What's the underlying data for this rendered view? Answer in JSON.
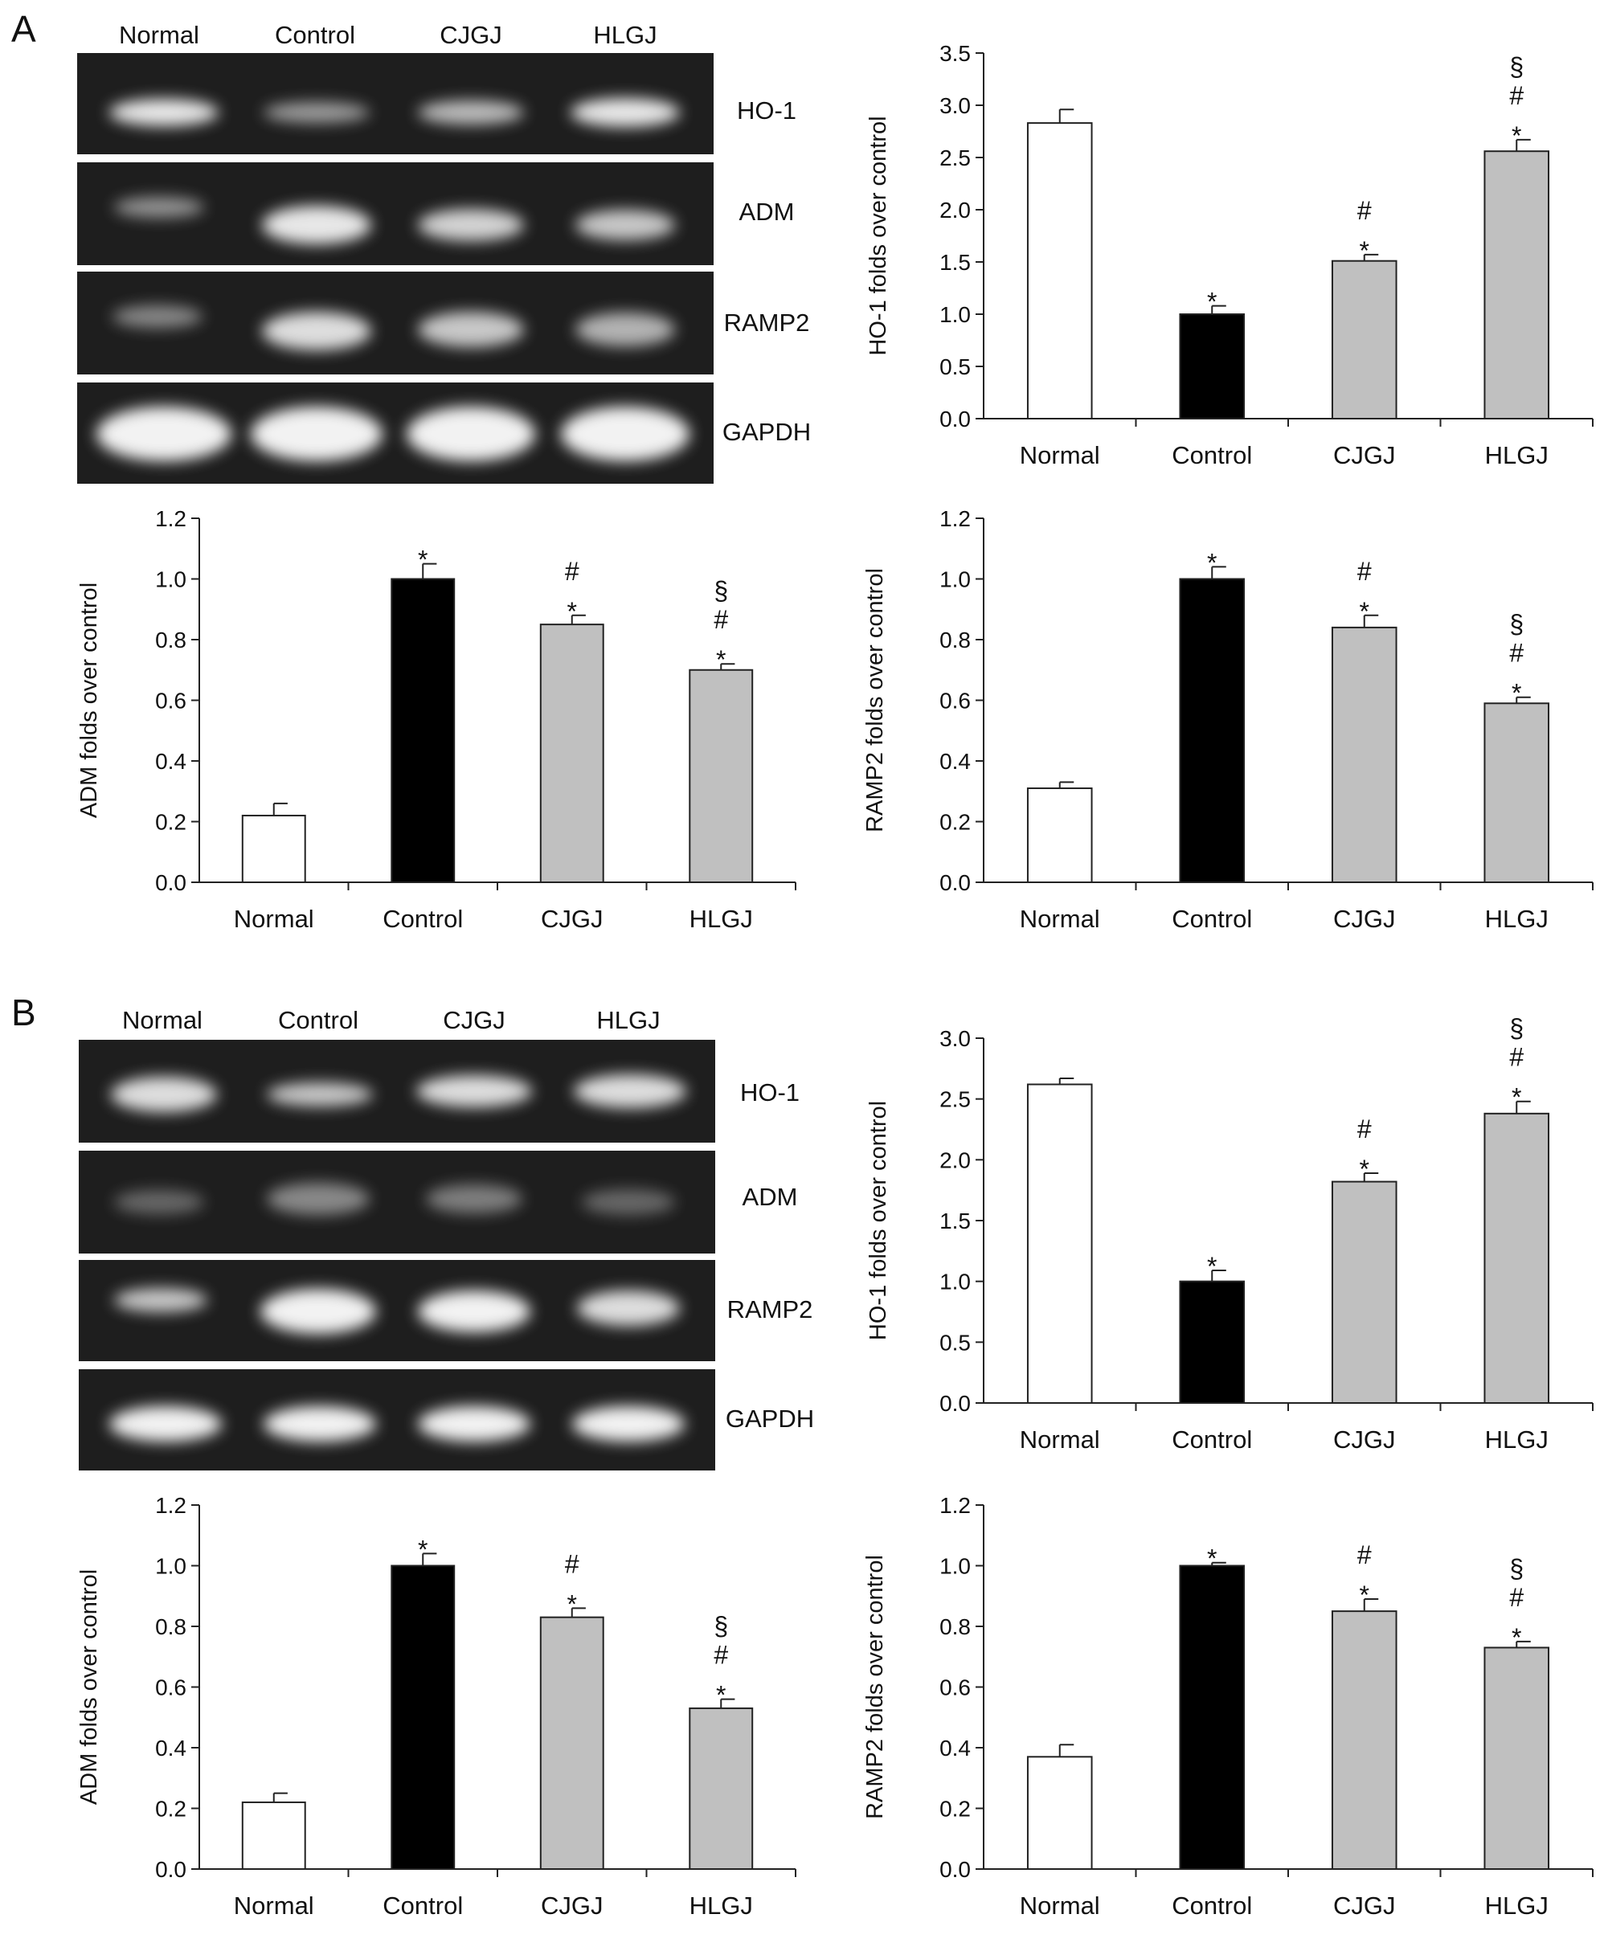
{
  "panels": [
    {
      "letter": "A",
      "gel": {
        "lanes": [
          "Normal",
          "Control",
          "CJGJ",
          "HLGJ"
        ],
        "genes": [
          "HO-1",
          "ADM",
          "RAMP2",
          "GAPDH"
        ]
      },
      "charts": [
        {
          "type": "bar",
          "ylabel": "HO-1 folds over control",
          "ylim": [
            0,
            3.5
          ],
          "yticks": [
            "0.0",
            "0.5",
            "1.0",
            "1.5",
            "2.0",
            "2.5",
            "3.0",
            "3.5"
          ],
          "categories": [
            "Normal",
            "Control",
            "CJGJ",
            "HLGJ"
          ],
          "values": [
            2.83,
            1.0,
            1.51,
            2.56
          ],
          "errors": [
            0.13,
            0.08,
            0.06,
            0.11
          ],
          "significance": [
            [],
            [
              "*"
            ],
            [
              "*",
              "#"
            ],
            [
              "*",
              "#",
              "§"
            ]
          ]
        },
        {
          "type": "bar",
          "ylabel": "ADM folds over control",
          "ylim": [
            0,
            1.2
          ],
          "yticks": [
            "0.0",
            "0.2",
            "0.4",
            "0.6",
            "0.8",
            "1.0",
            "1.2"
          ],
          "categories": [
            "Normal",
            "Control",
            "CJGJ",
            "HLGJ"
          ],
          "values": [
            0.22,
            1.0,
            0.85,
            0.7
          ],
          "errors": [
            0.04,
            0.05,
            0.03,
            0.02
          ],
          "significance": [
            [],
            [
              "*"
            ],
            [
              "*",
              "#"
            ],
            [
              "*",
              "#",
              "§"
            ]
          ]
        },
        {
          "type": "bar",
          "ylabel": "RAMP2 folds over control",
          "ylim": [
            0,
            1.2
          ],
          "yticks": [
            "0.0",
            "0.2",
            "0.4",
            "0.6",
            "0.8",
            "1.0",
            "1.2"
          ],
          "categories": [
            "Normal",
            "Control",
            "CJGJ",
            "HLGJ"
          ],
          "values": [
            0.31,
            1.0,
            0.84,
            0.59
          ],
          "errors": [
            0.02,
            0.04,
            0.04,
            0.02
          ],
          "significance": [
            [],
            [
              "*"
            ],
            [
              "*",
              "#"
            ],
            [
              "*",
              "#",
              "§"
            ]
          ]
        }
      ]
    },
    {
      "letter": "B",
      "gel": {
        "lanes": [
          "Normal",
          "Control",
          "CJGJ",
          "HLGJ"
        ],
        "genes": [
          "HO-1",
          "ADM",
          "RAMP2",
          "GAPDH"
        ]
      },
      "charts": [
        {
          "type": "bar",
          "ylabel": "HO-1 folds over control",
          "ylim": [
            0,
            3.0
          ],
          "yticks": [
            "0.0",
            "0.5",
            "1.0",
            "1.5",
            "2.0",
            "2.5",
            "3.0"
          ],
          "categories": [
            "Normal",
            "Control",
            "CJGJ",
            "HLGJ"
          ],
          "values": [
            2.62,
            1.0,
            1.82,
            2.38
          ],
          "errors": [
            0.05,
            0.09,
            0.07,
            0.1
          ],
          "significance": [
            [],
            [
              "*"
            ],
            [
              "*",
              "#"
            ],
            [
              "*",
              "#",
              "§"
            ]
          ]
        },
        {
          "type": "bar",
          "ylabel": "ADM folds over control",
          "ylim": [
            0,
            1.2
          ],
          "yticks": [
            "0.0",
            "0.2",
            "0.4",
            "0.6",
            "0.8",
            "1.0",
            "1.2"
          ],
          "categories": [
            "Normal",
            "Control",
            "CJGJ",
            "HLGJ"
          ],
          "values": [
            0.22,
            1.0,
            0.83,
            0.53
          ],
          "errors": [
            0.03,
            0.04,
            0.03,
            0.03
          ],
          "significance": [
            [],
            [
              "*"
            ],
            [
              "*",
              "#"
            ],
            [
              "*",
              "#",
              "§"
            ]
          ]
        },
        {
          "type": "bar",
          "ylabel": "RAMP2 folds over control",
          "ylim": [
            0,
            1.2
          ],
          "yticks": [
            "0.0",
            "0.2",
            "0.4",
            "0.6",
            "0.8",
            "1.0",
            "1.2"
          ],
          "categories": [
            "Normal",
            "Control",
            "CJGJ",
            "HLGJ"
          ],
          "values": [
            0.37,
            1.0,
            0.85,
            0.73
          ],
          "errors": [
            0.04,
            0.01,
            0.04,
            0.02
          ],
          "significance": [
            [],
            [
              "*"
            ],
            [
              "*",
              "#"
            ],
            [
              "*",
              "#",
              "§"
            ]
          ]
        }
      ]
    }
  ],
  "colors": {
    "normal_bar": "#ffffff",
    "control_bar": "#000000",
    "treatment_bar": "#c0c0c0",
    "gel_background": "#1e1e1e",
    "band": "#f2f2f2"
  },
  "chart_data": [
    {
      "type": "bar",
      "panel": "A",
      "ylabel": "HO-1 folds over control",
      "ylim": [
        0,
        3.5
      ],
      "categories": [
        "Normal",
        "Control",
        "CJGJ",
        "HLGJ"
      ],
      "values": [
        2.83,
        1.0,
        1.51,
        2.56
      ],
      "errors": [
        0.13,
        0.08,
        0.06,
        0.11
      ]
    },
    {
      "type": "bar",
      "panel": "A",
      "ylabel": "ADM folds over control",
      "ylim": [
        0,
        1.2
      ],
      "categories": [
        "Normal",
        "Control",
        "CJGJ",
        "HLGJ"
      ],
      "values": [
        0.22,
        1.0,
        0.85,
        0.7
      ],
      "errors": [
        0.04,
        0.05,
        0.03,
        0.02
      ]
    },
    {
      "type": "bar",
      "panel": "A",
      "ylabel": "RAMP2 folds over control",
      "ylim": [
        0,
        1.2
      ],
      "categories": [
        "Normal",
        "Control",
        "CJGJ",
        "HLGJ"
      ],
      "values": [
        0.31,
        1.0,
        0.84,
        0.59
      ],
      "errors": [
        0.02,
        0.04,
        0.04,
        0.02
      ]
    },
    {
      "type": "bar",
      "panel": "B",
      "ylabel": "HO-1 folds over control",
      "ylim": [
        0,
        3.0
      ],
      "categories": [
        "Normal",
        "Control",
        "CJGJ",
        "HLGJ"
      ],
      "values": [
        2.62,
        1.0,
        1.82,
        2.38
      ],
      "errors": [
        0.05,
        0.09,
        0.07,
        0.1
      ]
    },
    {
      "type": "bar",
      "panel": "B",
      "ylabel": "ADM folds over control",
      "ylim": [
        0,
        1.2
      ],
      "categories": [
        "Normal",
        "Control",
        "CJGJ",
        "HLGJ"
      ],
      "values": [
        0.22,
        1.0,
        0.83,
        0.53
      ],
      "errors": [
        0.03,
        0.04,
        0.03,
        0.03
      ]
    },
    {
      "type": "bar",
      "panel": "B",
      "ylabel": "RAMP2 folds over control",
      "ylim": [
        0,
        1.2
      ],
      "categories": [
        "Normal",
        "Control",
        "CJGJ",
        "HLGJ"
      ],
      "values": [
        0.37,
        1.0,
        0.85,
        0.73
      ],
      "errors": [
        0.04,
        0.01,
        0.04,
        0.02
      ]
    }
  ]
}
